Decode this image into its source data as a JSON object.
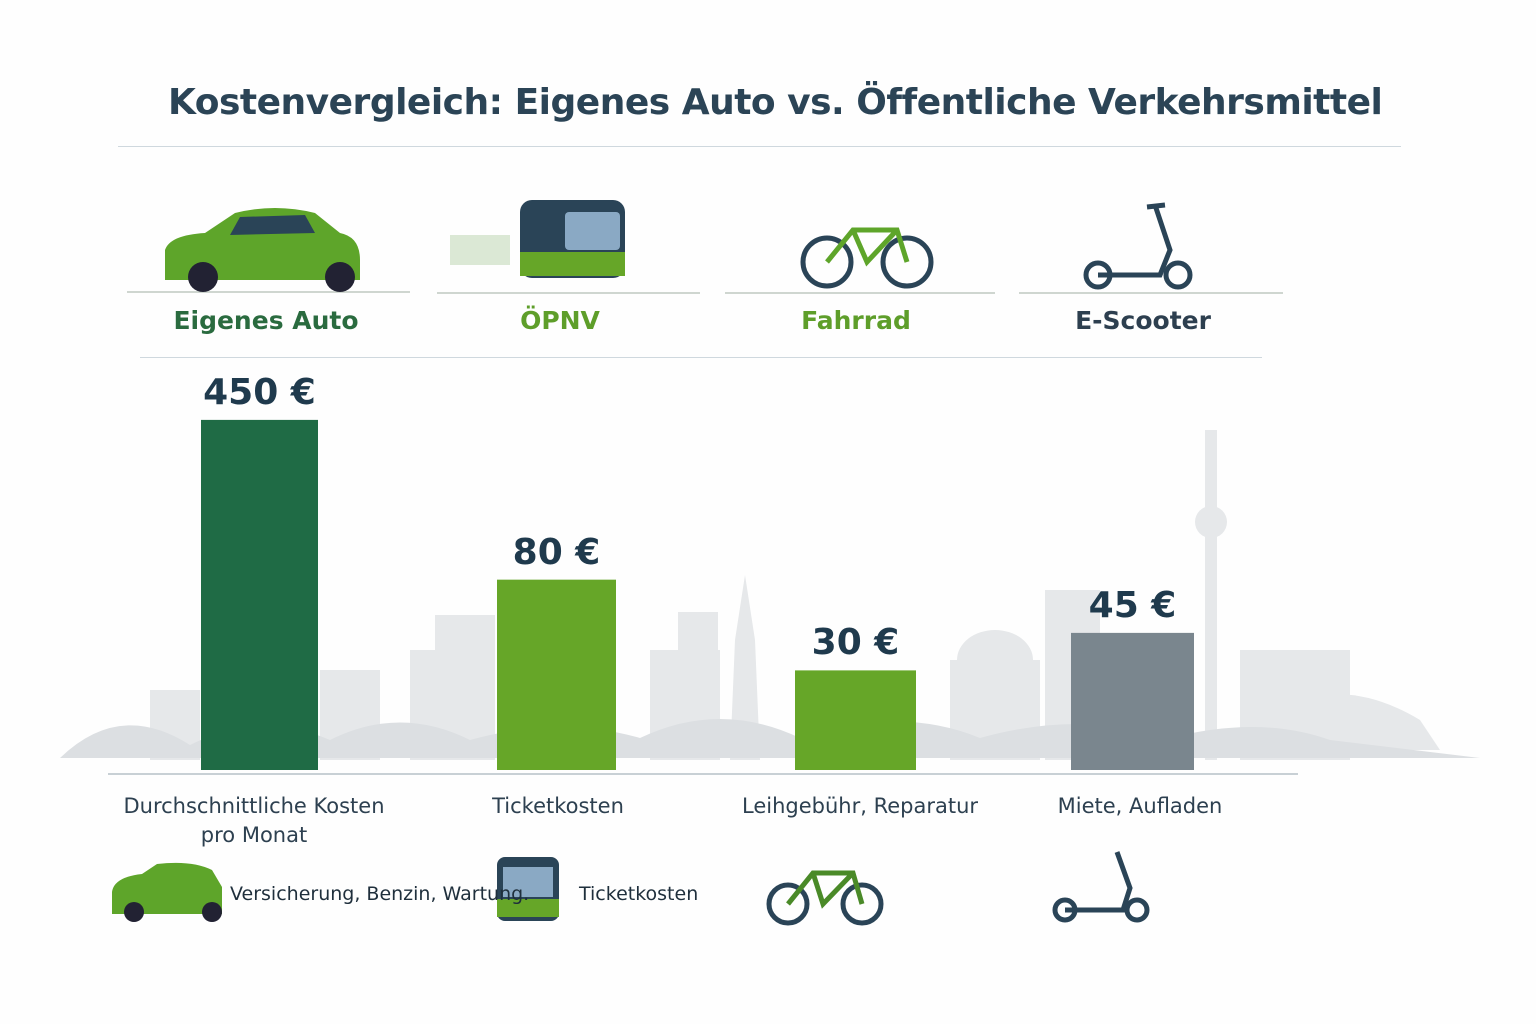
{
  "title": "Kostenvergleich: Eigenes Auto vs. Öffentliche Verkehrsmittel",
  "chart_data": {
    "type": "bar",
    "categories": [
      "Eigenes Auto",
      "ÖPNV",
      "Fahrrad",
      "E-Scooter"
    ],
    "values": [
      450,
      80,
      30,
      45
    ],
    "value_labels": [
      "450 €",
      "80 €",
      "30 €",
      "45 €"
    ],
    "descriptions": [
      "Durchschnittliche Kosten pro Monat",
      "Ticketkosten",
      "Leihgebühr, Reparatur",
      "Miete, Aufladen"
    ],
    "colors": [
      "#1f6b45",
      "#66a628",
      "#66a628",
      "#7a868e"
    ],
    "category_colors": [
      "#2a6b3f",
      "#5e9e2a",
      "#5e9e2a",
      "#2d3f4f"
    ],
    "icons": [
      "car-icon",
      "bus-icon",
      "bicycle-icon",
      "e-scooter-icon"
    ],
    "grid": false,
    "legend": "none"
  },
  "footer_notes": [
    "Versicherung, Benzin, Wartung.",
    "Ticketkosten"
  ]
}
